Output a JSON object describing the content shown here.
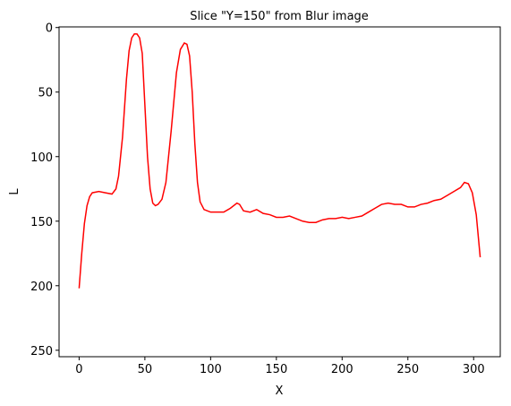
{
  "chart_data": {
    "type": "line",
    "title": "Slice \"Y=150\" from Blur image",
    "xlabel": "X",
    "ylabel": "L",
    "x": [
      0,
      2,
      4,
      6,
      8,
      10,
      15,
      20,
      25,
      28,
      30,
      33,
      36,
      38,
      40,
      42,
      44,
      46,
      48,
      50,
      52,
      54,
      56,
      58,
      60,
      63,
      66,
      70,
      74,
      77,
      80,
      82,
      84,
      86,
      88,
      90,
      92,
      95,
      100,
      105,
      110,
      115,
      120,
      122,
      125,
      130,
      135,
      140,
      145,
      150,
      155,
      160,
      165,
      170,
      175,
      180,
      185,
      190,
      195,
      200,
      205,
      210,
      215,
      220,
      225,
      230,
      235,
      240,
      245,
      250,
      255,
      260,
      265,
      270,
      275,
      280,
      285,
      290,
      293,
      296,
      299,
      302,
      305
    ],
    "series": [
      {
        "color": "#ff0000",
        "values": [
          202,
          175,
          152,
          138,
          131,
          128,
          127,
          128,
          129,
          125,
          115,
          85,
          40,
          18,
          8,
          5,
          5,
          8,
          20,
          60,
          100,
          125,
          136,
          138,
          137,
          133,
          120,
          80,
          35,
          17,
          12,
          13,
          22,
          50,
          90,
          120,
          135,
          141,
          143,
          143,
          143,
          140,
          136,
          137,
          142,
          143,
          141,
          144,
          145,
          147,
          147,
          146,
          148,
          150,
          151,
          151,
          149,
          148,
          148,
          147,
          148,
          147,
          146,
          143,
          140,
          137,
          136,
          137,
          137,
          139,
          139,
          137,
          136,
          134,
          133,
          130,
          127,
          124,
          120,
          121,
          128,
          145,
          178
        ]
      }
    ],
    "xlim": [
      -15.25,
      320.25
    ],
    "xticks": [
      0,
      50,
      100,
      150,
      200,
      250,
      300
    ],
    "ylim": [
      255,
      -0.5
    ],
    "yticks": [
      0,
      50,
      100,
      150,
      200,
      250
    ]
  }
}
